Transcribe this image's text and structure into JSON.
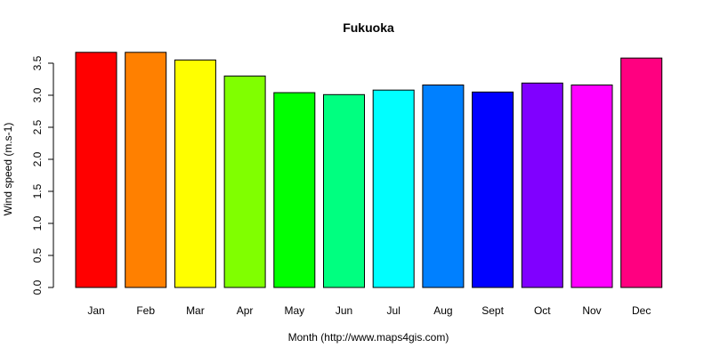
{
  "chart_data": {
    "type": "bar",
    "title": "Fukuoka",
    "xlabel": "Month (http://www.maps4gis.com)",
    "ylabel": "Wind speed (m.s-1)",
    "categories": [
      "Jan",
      "Feb",
      "Mar",
      "Apr",
      "May",
      "Jun",
      "Jul",
      "Aug",
      "Sept",
      "Oct",
      "Nov",
      "Dec"
    ],
    "values": [
      3.67,
      3.67,
      3.55,
      3.3,
      3.04,
      3.01,
      3.08,
      3.16,
      3.05,
      3.19,
      3.16,
      3.58
    ],
    "colors": [
      "#FF0000",
      "#FF8000",
      "#FFFF00",
      "#80FF00",
      "#00FF00",
      "#00FF80",
      "#00FFFF",
      "#0080FF",
      "#0000FF",
      "#8000FF",
      "#FF00FF",
      "#FF0080"
    ],
    "ylim": [
      0,
      3.67
    ],
    "yticks": [
      0.0,
      0.5,
      1.0,
      1.5,
      2.0,
      2.5,
      3.0,
      3.5
    ],
    "ytick_labels": [
      "0.0",
      "0.5",
      "1.0",
      "1.5",
      "2.0",
      "2.5",
      "3.0",
      "3.5"
    ],
    "grid": false,
    "legend": "none"
  }
}
